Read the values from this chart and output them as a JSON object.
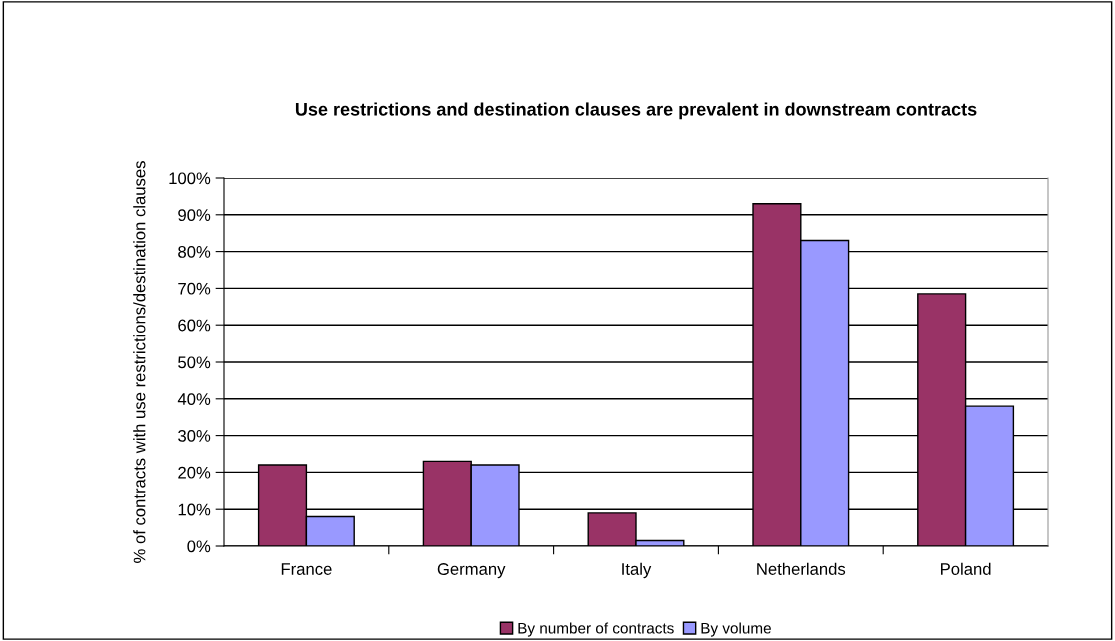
{
  "chart_data": {
    "type": "bar",
    "title": "Use restrictions and destination clauses are prevalent in downstream contracts",
    "ylabel": "% of contracts with use restrictions/destination clauses",
    "categories": [
      "France",
      "Germany",
      "Italy",
      "Netherlands",
      "Poland"
    ],
    "series": [
      {
        "name": "By number of contracts",
        "color": "#993366",
        "values": [
          22,
          23,
          9,
          93,
          68.5
        ]
      },
      {
        "name": "By volume",
        "color": "#9999ff",
        "values": [
          8,
          22,
          1.5,
          83,
          38
        ]
      }
    ],
    "ylim": [
      0,
      100
    ],
    "yticks": [
      {
        "value": 0,
        "label": "0%"
      },
      {
        "value": 10,
        "label": "10%"
      },
      {
        "value": 20,
        "label": "20%"
      },
      {
        "value": 30,
        "label": "30%"
      },
      {
        "value": 40,
        "label": "40%"
      },
      {
        "value": 50,
        "label": "50%"
      },
      {
        "value": 60,
        "label": "60%"
      },
      {
        "value": 70,
        "label": "70%"
      },
      {
        "value": 80,
        "label": "80%"
      },
      {
        "value": 90,
        "label": "90%"
      },
      {
        "value": 100,
        "label": "100%"
      }
    ],
    "grid": "y",
    "legend": "bottom"
  }
}
